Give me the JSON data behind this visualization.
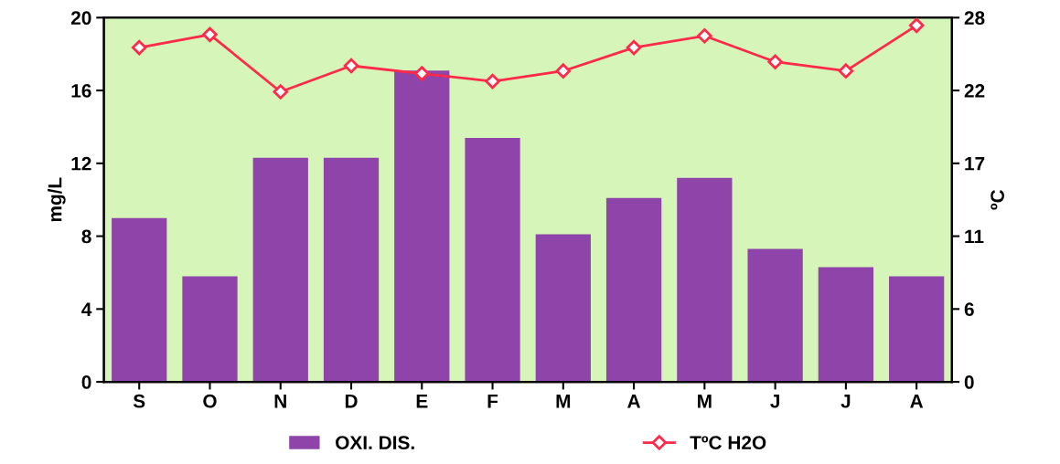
{
  "chart_data": {
    "type": "bar",
    "ylabel": "mg/L",
    "y2label": "ºC",
    "categories": [
      "S",
      "O",
      "N",
      "D",
      "E",
      "F",
      "M",
      "A",
      "M",
      "J",
      "J",
      "A"
    ],
    "series": [
      {
        "name": "OXI. DIS.",
        "color": "#8e44a8",
        "values": [
          9.0,
          5.8,
          12.3,
          12.3,
          17.1,
          13.4,
          8.1,
          10.1,
          11.2,
          7.3,
          6.3,
          5.8
        ]
      },
      {
        "name": "TºC H2O",
        "type": "line",
        "axis": "y2",
        "color": "#ff2a4a",
        "marker": "diamond",
        "values": [
          25.7,
          26.7,
          22.3,
          24.3,
          23.7,
          23.1,
          23.9,
          25.7,
          26.6,
          24.6,
          23.9,
          27.4
        ]
      }
    ],
    "ylim": [
      0,
      20
    ],
    "yticks": [
      0,
      4,
      8,
      12,
      16,
      20
    ],
    "y2lim": [
      0,
      28
    ],
    "y2ticks": [
      0,
      {
        "value": 5.6,
        "label": "6"
      },
      {
        "value": 11.2,
        "label": "11"
      },
      {
        "value": 16.8,
        "label": "17"
      },
      {
        "value": 22.4,
        "label": "22"
      },
      28
    ],
    "legend": "bottom",
    "grid": false
  }
}
